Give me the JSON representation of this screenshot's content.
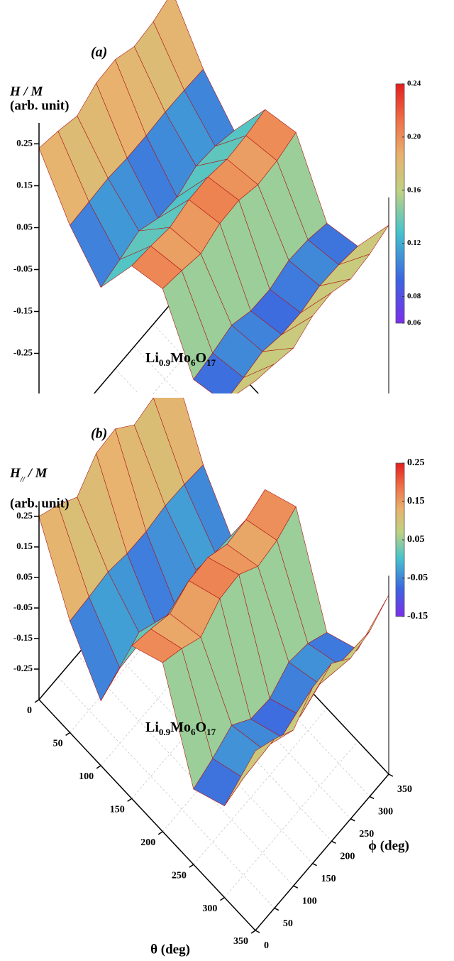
{
  "chart_data": [
    {
      "type": "surface",
      "label": "(a)",
      "zlabel": "H / M",
      "zunit": "(arb. unit)",
      "formula": [
        "Li",
        "0.9",
        "Mo",
        "6",
        "O",
        "17"
      ],
      "xlim": [
        0,
        350
      ],
      "ylim": [
        0,
        350
      ],
      "zlim": [
        -0.5,
        0.3
      ],
      "zticks": [
        0.25,
        0.15,
        0.05,
        -0.05,
        -0.15,
        -0.25
      ],
      "x": [
        0,
        50,
        100,
        150,
        200,
        250,
        300,
        350
      ],
      "y": [
        0,
        50,
        100,
        150,
        200,
        250,
        300,
        350
      ],
      "z": [
        [
          0.24,
          0.227,
          0.21,
          0.235,
          0.238,
          0.216,
          0.222,
          0.24
        ],
        [
          0.134,
          0.137,
          0.14,
          0.135,
          0.135,
          0.138,
          0.137,
          0.134
        ],
        [
          0.065,
          0.078,
          0.093,
          0.07,
          0.067,
          0.088,
          0.082,
          0.066
        ],
        [
          0.195,
          0.189,
          0.18,
          0.193,
          0.194,
          0.183,
          0.186,
          0.195
        ],
        [
          0.219,
          0.209,
          0.196,
          0.215,
          0.217,
          0.201,
          0.205,
          0.219
        ],
        [
          0.081,
          0.091,
          0.104,
          0.085,
          0.083,
          0.099,
          0.095,
          0.081
        ],
        [
          0.105,
          0.111,
          0.12,
          0.107,
          0.106,
          0.117,
          0.114,
          0.105
        ],
        [
          0.235,
          0.222,
          0.207,
          0.23,
          0.233,
          0.212,
          0.218,
          0.234
        ]
      ],
      "clim": [
        0.06,
        0.24
      ],
      "cbticks": [
        0.24,
        {
          "value": 0.2,
          "label": "0.20"
        },
        0.16,
        0.12,
        0.08,
        0.06
      ]
    },
    {
      "type": "surface",
      "label": "(b)",
      "zlabel": {
        "main": "H",
        "sub": "//",
        "rest": " / M"
      },
      "zunit": "(arb. unit)",
      "formula": [
        "Li",
        "0.9",
        "Mo",
        "6",
        "O",
        "17"
      ],
      "xlabel": "θ  (deg)",
      "ylabel": "ϕ  (deg)",
      "xlim": [
        0,
        350
      ],
      "ylim": [
        0,
        350
      ],
      "zlim": [
        -0.35,
        0.3
      ],
      "xticks": [
        0,
        50,
        100,
        150,
        200,
        250,
        300,
        350
      ],
      "yticks": [
        0,
        50,
        100,
        150,
        200,
        250,
        300,
        350
      ],
      "zticks": [
        0.25,
        0.15,
        0.05,
        -0.05,
        -0.15,
        -0.25
      ],
      "x": [
        0,
        50,
        100,
        150,
        200,
        250,
        300,
        350
      ],
      "y": [
        0,
        50,
        100,
        150,
        200,
        250,
        300,
        350
      ],
      "z": [
        [
          0.25,
          0.214,
          0.167,
          0.237,
          0.244,
          0.184,
          0.2,
          0.249
        ],
        [
          0.015,
          0.021,
          0.03,
          0.017,
          0.016,
          0.027,
          0.024,
          0.015
        ],
        [
          -0.138,
          -0.104,
          -0.06,
          -0.126,
          -0.132,
          -0.076,
          -0.091,
          -0.137
        ],
        [
          0.15,
          0.132,
          0.109,
          0.144,
          0.147,
          0.117,
          0.125,
          0.15
        ],
        [
          0.203,
          0.176,
          0.14,
          0.193,
          0.199,
          0.153,
          0.165,
          0.202
        ],
        [
          -0.103,
          -0.076,
          -0.04,
          -0.093,
          -0.099,
          -0.053,
          -0.065,
          -0.102
        ],
        [
          -0.05,
          -0.032,
          -0.009,
          -0.044,
          -0.047,
          -0.017,
          -0.025,
          -0.05
        ],
        [
          0.238,
          0.204,
          0.16,
          0.226,
          0.232,
          0.176,
          0.191,
          0.237
        ]
      ],
      "clim": [
        -0.15,
        0.25
      ],
      "cbticks": [
        0.25,
        0.15,
        0.05,
        -0.05,
        -0.15
      ]
    }
  ]
}
